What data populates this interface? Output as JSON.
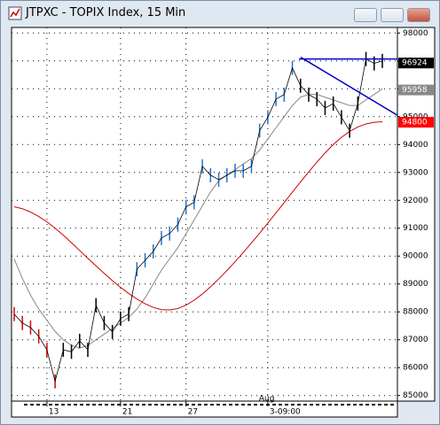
{
  "chart_data": {
    "type": "line",
    "title": "JTPXC - TOPIX Index, 15 Min",
    "values": [
      87920,
      87600,
      87440,
      87120,
      86640,
      85510,
      86640,
      86570,
      86960,
      86640,
      88240,
      87600,
      87280,
      87760,
      87920,
      89530,
      89850,
      90170,
      90650,
      90810,
      91130,
      91770,
      91930,
      93220,
      92900,
      92740,
      92900,
      93060,
      93060,
      93220,
      94500,
      94980,
      95630,
      95790,
      96750,
      96110,
      95790,
      95630,
      95310,
      95470,
      94980,
      94500,
      95470,
      97070,
      96910,
      97000
    ],
    "series": [
      {
        "color": "#888888",
        "values": [
          89900,
          89200,
          88600,
          88100,
          87700,
          87300,
          87000,
          86800,
          86700,
          86800,
          87000,
          87200,
          87400,
          87600,
          87800,
          88100,
          88500,
          89000,
          89500,
          89900,
          90300,
          90800,
          91300,
          91800,
          92300,
          92700,
          92900,
          93100,
          93300,
          93500,
          93800,
          94200,
          94600,
          95000,
          95400,
          95700,
          95800,
          95800,
          95700,
          95600,
          95500,
          95400,
          95400,
          95600,
          95800,
          96000
        ]
      },
      {
        "color": "#cc0000",
        "values": [
          91770,
          91700,
          91580,
          91420,
          91230,
          91000,
          90750,
          90480,
          90200,
          89920,
          89650,
          89380,
          89120,
          88880,
          88660,
          88460,
          88290,
          88160,
          88080,
          88070,
          88120,
          88240,
          88420,
          88640,
          88900,
          89180,
          89480,
          89800,
          90130,
          90470,
          90820,
          91180,
          91550,
          91920,
          92290,
          92660,
          93020,
          93370,
          93700,
          94000,
          94260,
          94470,
          94630,
          94740,
          94800,
          94820
        ]
      }
    ],
    "trendlines": [
      {
        "color": "#0000cc",
        "values": [
          97070,
          97070
        ]
      },
      {
        "color": "#0000cc",
        "values": [
          97130,
          95050
        ]
      }
    ],
    "price_labels": [
      {
        "value": 96924,
        "color": "#000000"
      },
      {
        "value": 95958,
        "color": "#888888"
      },
      {
        "value": 94800,
        "color": "#ff0000"
      }
    ],
    "ylim": [
      84800,
      98200
    ],
    "yticks": [
      85000,
      86000,
      87000,
      88000,
      89000,
      90000,
      91000,
      92000,
      93000,
      94000,
      95000,
      96000,
      97000,
      98000
    ],
    "xticks": [
      {
        "value": 4,
        "label": "13"
      },
      {
        "value": 13,
        "label": "21"
      },
      {
        "value": 21,
        "label": "27"
      },
      {
        "value": 31,
        "label": "3-09:00"
      }
    ],
    "month_label": "Aug",
    "grid": true
  }
}
